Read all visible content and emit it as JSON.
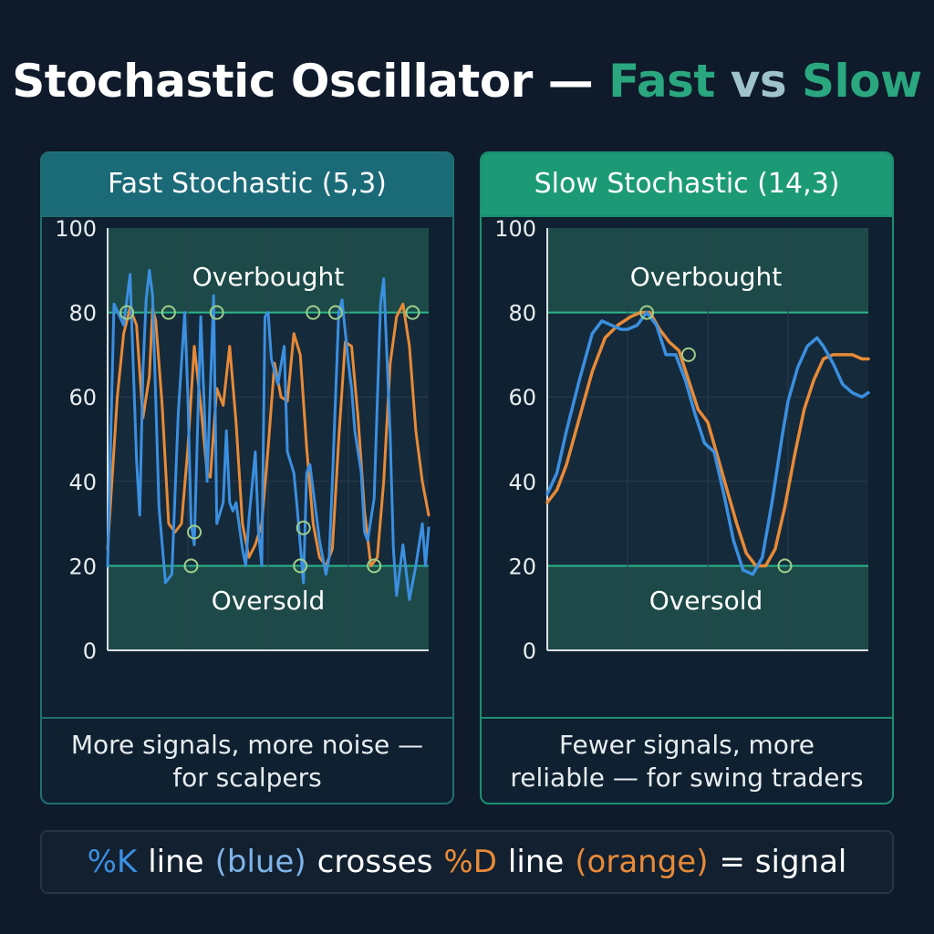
{
  "title": {
    "part1": "Stochastic Oscillator —",
    "part2": "Fast",
    "part3": "vs",
    "part4": "Slow"
  },
  "colors": {
    "k_line": "#3b8fe0",
    "d_line": "#e88a38",
    "zone_fill": "#1d4a48",
    "threshold_line": "#2bb58b",
    "marker": "#9ecf8a"
  },
  "chart_data": [
    {
      "type": "line",
      "title": "Fast Stochastic (5,3)",
      "ylim": [
        0,
        100
      ],
      "yticks": [
        "0",
        "20",
        "40",
        "60",
        "80",
        "100"
      ],
      "xlim": [
        0,
        100
      ],
      "grid": true,
      "bands": [
        {
          "label": "Overbought",
          "from": 80,
          "to": 100
        },
        {
          "label": "Oversold",
          "from": 0,
          "to": 20
        }
      ],
      "series": [
        {
          "x": [
            0,
            2,
            5,
            7,
            9,
            10,
            11,
            12,
            13,
            14,
            16,
            18,
            20,
            22,
            24,
            25,
            26,
            27,
            29,
            31,
            33,
            34,
            36,
            37,
            38,
            39,
            40,
            42,
            43,
            44,
            46,
            47,
            48,
            49,
            50,
            51,
            53,
            55,
            56,
            58,
            59,
            61,
            62,
            63,
            64,
            66,
            68,
            69,
            70,
            72,
            73,
            75,
            76,
            77,
            79,
            80,
            81,
            83,
            85,
            86,
            88,
            89,
            90,
            92,
            94,
            96,
            98,
            99,
            100
          ],
          "values": [
            20,
            82,
            77,
            89,
            45,
            32,
            66,
            83,
            90,
            84,
            34,
            16,
            18,
            56,
            80,
            60,
            30,
            25,
            79,
            40,
            84,
            30,
            35,
            52,
            35,
            33,
            35,
            24,
            20,
            31,
            47,
            28,
            20,
            79,
            80,
            69,
            63,
            72,
            47,
            42,
            34,
            16,
            42,
            44,
            38,
            26,
            18,
            22,
            40,
            80,
            83,
            68,
            62,
            52,
            42,
            28,
            26,
            36,
            82,
            88,
            51,
            24,
            13,
            25,
            12,
            20,
            30,
            20,
            29
          ]
        },
        {
          "x": [
            0,
            3,
            5,
            7,
            9,
            11,
            13,
            14,
            15,
            17,
            19,
            21,
            23,
            25,
            27,
            29,
            31,
            32,
            34,
            36,
            38,
            40,
            42,
            44,
            46,
            48,
            50,
            52,
            54,
            56,
            58,
            60,
            62,
            64,
            66,
            68,
            70,
            72,
            74,
            76,
            78,
            80,
            82,
            84,
            86,
            88,
            90,
            92,
            94,
            96,
            98,
            100
          ],
          "values": [
            24,
            60,
            75,
            81,
            77,
            55,
            65,
            81,
            78,
            58,
            30,
            28,
            30,
            48,
            72,
            58,
            42,
            41,
            62,
            58,
            72,
            54,
            30,
            22,
            25,
            30,
            48,
            68,
            60,
            59,
            75,
            70,
            48,
            30,
            22,
            20,
            24,
            50,
            73,
            72,
            55,
            33,
            20,
            22,
            40,
            68,
            79,
            82,
            72,
            52,
            40,
            32
          ]
        }
      ],
      "markers": [
        {
          "x": 6,
          "y": 80
        },
        {
          "x": 19,
          "y": 80
        },
        {
          "x": 26,
          "y": 20
        },
        {
          "x": 27,
          "y": 28
        },
        {
          "x": 34,
          "y": 80
        },
        {
          "x": 60,
          "y": 20
        },
        {
          "x": 61,
          "y": 29
        },
        {
          "x": 64,
          "y": 80
        },
        {
          "x": 71,
          "y": 80
        },
        {
          "x": 83,
          "y": 20
        },
        {
          "x": 95,
          "y": 80
        }
      ]
    },
    {
      "type": "line",
      "title": "Slow Stochastic (14,3)",
      "ylim": [
        0,
        100
      ],
      "yticks": [
        "0",
        "20",
        "40",
        "60",
        "80",
        "100"
      ],
      "xlim": [
        0,
        100
      ],
      "grid": true,
      "bands": [
        {
          "label": "Overbought",
          "from": 80,
          "to": 100
        },
        {
          "label": "Oversold",
          "from": 0,
          "to": 20
        }
      ],
      "series": [
        {
          "x": [
            0,
            3,
            6,
            10,
            14,
            17,
            20,
            23,
            25,
            28,
            31,
            34,
            37,
            40,
            43,
            46,
            49,
            52,
            55,
            58,
            61,
            64,
            67,
            70,
            73,
            75,
            78,
            81,
            84,
            86,
            89,
            92,
            95,
            98,
            100
          ],
          "values": [
            37,
            42,
            52,
            64,
            75,
            78,
            77,
            76,
            76,
            77,
            80,
            77,
            70,
            70,
            64,
            56,
            49,
            47,
            37,
            26,
            19,
            18,
            22,
            35,
            50,
            59,
            67,
            72,
            74,
            72,
            68,
            63,
            61,
            60,
            61
          ]
        },
        {
          "x": [
            0,
            3,
            6,
            10,
            14,
            18,
            22,
            26,
            29,
            32,
            35,
            38,
            41,
            44,
            47,
            50,
            53,
            56,
            59,
            62,
            65,
            68,
            71,
            74,
            77,
            80,
            83,
            86,
            89,
            92,
            95,
            98,
            100
          ],
          "values": [
            35,
            38,
            44,
            55,
            66,
            74,
            77,
            79,
            80,
            80,
            76,
            73,
            71,
            64,
            57,
            54,
            46,
            38,
            30,
            23,
            20,
            20,
            24,
            34,
            46,
            57,
            64,
            69,
            70,
            70,
            70,
            69,
            69
          ]
        }
      ],
      "markers": [
        {
          "x": 31,
          "y": 80
        },
        {
          "x": 44,
          "y": 70
        },
        {
          "x": 74,
          "y": 20
        }
      ]
    }
  ],
  "panels": {
    "fast": {
      "heading": "Fast Stochastic (5,3)",
      "overbought": "Overbought",
      "oversold": "Oversold",
      "caption": "More signals, more noise — for scalpers"
    },
    "slow": {
      "heading": "Slow Stochastic (14,3)",
      "overbought": "Overbought",
      "oversold": "Oversold",
      "caption": "Fewer signals, more reliable — for swing traders"
    }
  },
  "legend": {
    "k": "%K",
    "line1": "line",
    "blue": "(blue)",
    "crosses": "crosses",
    "d": "%D",
    "line2": "line",
    "orange": "(orange)",
    "signal": "= signal"
  }
}
